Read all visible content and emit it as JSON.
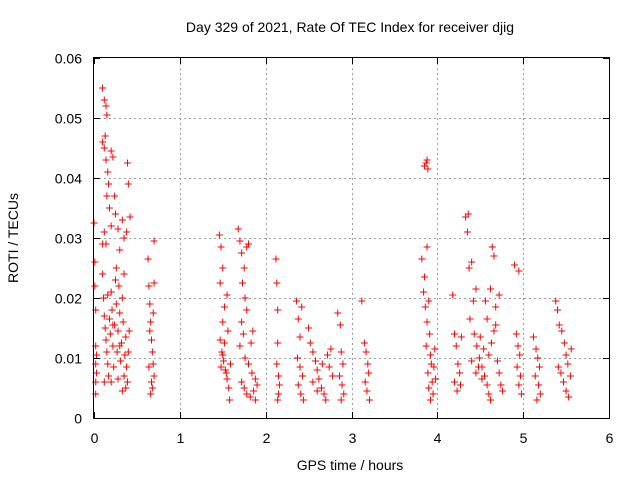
{
  "chart_data": {
    "type": "scatter",
    "title": "Day 329 of 2021, Rate Of TEC Index for receiver djig",
    "xlabel": "GPS time / hours",
    "ylabel": "ROTI / TECUs",
    "xlim": [
      0,
      6
    ],
    "ylim": [
      0,
      0.06
    ],
    "x_ticks": [
      0,
      1,
      2,
      3,
      4,
      5,
      6
    ],
    "x_tick_labels": [
      "0",
      "1",
      "2",
      "3",
      "4",
      "5",
      "6"
    ],
    "y_ticks": [
      0,
      0.01,
      0.02,
      0.03,
      0.04,
      0.05,
      0.06
    ],
    "y_tick_labels": [
      "0",
      "0.01",
      "0.02",
      "0.03",
      "0.04",
      "0.05",
      "0.06"
    ],
    "grid": true,
    "marker": "+",
    "color": "#ff0000",
    "series": [
      {
        "name": "ROTI",
        "points": [
          [
            0.0,
            0.0325
          ],
          [
            0.01,
            0.026
          ],
          [
            0.01,
            0.022
          ],
          [
            0.02,
            0.018
          ],
          [
            0.02,
            0.012
          ],
          [
            0.02,
            0.009
          ],
          [
            0.02,
            0.006
          ],
          [
            0.02,
            0.004
          ],
          [
            0.03,
            0.0105
          ],
          [
            0.03,
            0.0075
          ],
          [
            0.1,
            0.055
          ],
          [
            0.12,
            0.053
          ],
          [
            0.14,
            0.052
          ],
          [
            0.15,
            0.0505
          ],
          [
            0.13,
            0.047
          ],
          [
            0.12,
            0.045
          ],
          [
            0.1,
            0.046
          ],
          [
            0.14,
            0.043
          ],
          [
            0.16,
            0.041
          ],
          [
            0.17,
            0.039
          ],
          [
            0.2,
            0.0445
          ],
          [
            0.22,
            0.0435
          ],
          [
            0.15,
            0.037
          ],
          [
            0.1,
            0.029
          ],
          [
            0.12,
            0.031
          ],
          [
            0.14,
            0.029
          ],
          [
            0.18,
            0.035
          ],
          [
            0.2,
            0.032
          ],
          [
            0.24,
            0.037
          ],
          [
            0.25,
            0.034
          ],
          [
            0.28,
            0.0315
          ],
          [
            0.3,
            0.028
          ],
          [
            0.33,
            0.033
          ],
          [
            0.35,
            0.03
          ],
          [
            0.38,
            0.031
          ],
          [
            0.39,
            0.0425
          ],
          [
            0.4,
            0.039
          ],
          [
            0.42,
            0.0335
          ],
          [
            0.1,
            0.024
          ],
          [
            0.11,
            0.02
          ],
          [
            0.12,
            0.017
          ],
          [
            0.13,
            0.015
          ],
          [
            0.14,
            0.013
          ],
          [
            0.15,
            0.011
          ],
          [
            0.16,
            0.009
          ],
          [
            0.17,
            0.007
          ],
          [
            0.18,
            0.0165
          ],
          [
            0.19,
            0.014
          ],
          [
            0.2,
            0.021
          ],
          [
            0.21,
            0.018
          ],
          [
            0.22,
            0.012
          ],
          [
            0.23,
            0.0085
          ],
          [
            0.24,
            0.0155
          ],
          [
            0.25,
            0.023
          ],
          [
            0.26,
            0.019
          ],
          [
            0.27,
            0.011
          ],
          [
            0.28,
            0.0145
          ],
          [
            0.29,
            0.022
          ],
          [
            0.3,
            0.0175
          ],
          [
            0.31,
            0.0095
          ],
          [
            0.32,
            0.0125
          ],
          [
            0.33,
            0.02
          ],
          [
            0.34,
            0.016
          ],
          [
            0.35,
            0.007
          ],
          [
            0.36,
            0.0105
          ],
          [
            0.37,
            0.0135
          ],
          [
            0.38,
            0.0085
          ],
          [
            0.39,
            0.006
          ],
          [
            0.4,
            0.011
          ],
          [
            0.41,
            0.0145
          ],
          [
            0.12,
            0.006
          ],
          [
            0.2,
            0.006
          ],
          [
            0.28,
            0.0065
          ],
          [
            0.33,
            0.0045
          ],
          [
            0.37,
            0.005
          ],
          [
            0.26,
            0.025
          ],
          [
            0.16,
            0.0205
          ],
          [
            0.22,
            0.0155
          ],
          [
            0.3,
            0.012
          ],
          [
            0.35,
            0.024
          ],
          [
            0.63,
            0.0265
          ],
          [
            0.64,
            0.022
          ],
          [
            0.65,
            0.019
          ],
          [
            0.66,
            0.016
          ],
          [
            0.67,
            0.013
          ],
          [
            0.68,
            0.011
          ],
          [
            0.69,
            0.009
          ],
          [
            0.7,
            0.007
          ],
          [
            0.68,
            0.005
          ],
          [
            0.66,
            0.004
          ],
          [
            0.7,
            0.0295
          ],
          [
            0.7,
            0.0225
          ],
          [
            0.65,
            0.0145
          ],
          [
            0.69,
            0.0175
          ],
          [
            0.64,
            0.0085
          ],
          [
            0.67,
            0.006
          ],
          [
            1.46,
            0.0305
          ],
          [
            1.48,
            0.0285
          ],
          [
            1.5,
            0.025
          ],
          [
            1.47,
            0.0225
          ],
          [
            1.52,
            0.0185
          ],
          [
            1.55,
            0.0205
          ],
          [
            1.5,
            0.016
          ],
          [
            1.47,
            0.013
          ],
          [
            1.49,
            0.011
          ],
          [
            1.51,
            0.0095
          ],
          [
            1.53,
            0.008
          ],
          [
            1.55,
            0.0065
          ],
          [
            1.57,
            0.005
          ],
          [
            1.58,
            0.003
          ],
          [
            1.48,
            0.0085
          ],
          [
            1.5,
            0.0105
          ],
          [
            1.52,
            0.0125
          ],
          [
            1.56,
            0.0145
          ],
          [
            1.59,
            0.009
          ],
          [
            1.54,
            0.0075
          ],
          [
            1.68,
            0.0315
          ],
          [
            1.7,
            0.0295
          ],
          [
            1.72,
            0.0275
          ],
          [
            1.75,
            0.025
          ],
          [
            1.78,
            0.0285
          ],
          [
            1.8,
            0.029
          ],
          [
            1.73,
            0.0225
          ],
          [
            1.76,
            0.02
          ],
          [
            1.78,
            0.018
          ],
          [
            1.72,
            0.016
          ],
          [
            1.74,
            0.014
          ],
          [
            1.7,
            0.012
          ],
          [
            1.76,
            0.01
          ],
          [
            1.8,
            0.009
          ],
          [
            1.84,
            0.0075
          ],
          [
            1.85,
            0.0145
          ],
          [
            1.83,
            0.0125
          ],
          [
            1.88,
            0.0065
          ],
          [
            1.9,
            0.0055
          ],
          [
            1.72,
            0.006
          ],
          [
            1.75,
            0.005
          ],
          [
            1.78,
            0.004
          ],
          [
            1.82,
            0.0035
          ],
          [
            1.86,
            0.0045
          ],
          [
            1.88,
            0.003
          ],
          [
            2.12,
            0.0265
          ],
          [
            2.13,
            0.0225
          ],
          [
            2.14,
            0.018
          ],
          [
            2.14,
            0.0125
          ],
          [
            2.13,
            0.009
          ],
          [
            2.15,
            0.007
          ],
          [
            2.16,
            0.0055
          ],
          [
            2.15,
            0.004
          ],
          [
            2.14,
            0.003
          ],
          [
            2.36,
            0.0195
          ],
          [
            2.38,
            0.0165
          ],
          [
            2.4,
            0.0135
          ],
          [
            2.42,
            0.0185
          ],
          [
            2.37,
            0.01
          ],
          [
            2.4,
            0.0085
          ],
          [
            2.43,
            0.007
          ],
          [
            2.38,
            0.0055
          ],
          [
            2.41,
            0.004
          ],
          [
            2.44,
            0.003
          ],
          [
            2.5,
            0.015
          ],
          [
            2.52,
            0.0125
          ],
          [
            2.55,
            0.011
          ],
          [
            2.58,
            0.0095
          ],
          [
            2.6,
            0.008
          ],
          [
            2.62,
            0.0065
          ],
          [
            2.65,
            0.005
          ],
          [
            2.68,
            0.004
          ],
          [
            2.7,
            0.003
          ],
          [
            2.72,
            0.0105
          ],
          [
            2.74,
            0.0085
          ],
          [
            2.76,
            0.0115
          ],
          [
            2.78,
            0.007
          ],
          [
            2.55,
            0.006
          ],
          [
            2.6,
            0.0045
          ],
          [
            2.66,
            0.009
          ],
          [
            2.84,
            0.0175
          ],
          [
            2.87,
            0.0155
          ],
          [
            2.88,
            0.011
          ],
          [
            2.9,
            0.009
          ],
          [
            2.86,
            0.007
          ],
          [
            2.89,
            0.0055
          ],
          [
            2.91,
            0.004
          ],
          [
            2.88,
            0.003
          ],
          [
            3.12,
            0.0195
          ],
          [
            3.15,
            0.0125
          ],
          [
            3.17,
            0.011
          ],
          [
            3.19,
            0.009
          ],
          [
            3.2,
            0.0075
          ],
          [
            3.16,
            0.006
          ],
          [
            3.18,
            0.0045
          ],
          [
            3.21,
            0.003
          ],
          [
            3.85,
            0.042
          ],
          [
            3.87,
            0.0425
          ],
          [
            3.88,
            0.043
          ],
          [
            3.89,
            0.0415
          ],
          [
            3.82,
            0.0265
          ],
          [
            3.88,
            0.0285
          ],
          [
            3.85,
            0.0235
          ],
          [
            3.84,
            0.021
          ],
          [
            3.86,
            0.0185
          ],
          [
            3.9,
            0.0195
          ],
          [
            3.88,
            0.016
          ],
          [
            3.91,
            0.014
          ],
          [
            3.87,
            0.012
          ],
          [
            3.92,
            0.0105
          ],
          [
            3.93,
            0.009
          ],
          [
            3.89,
            0.0075
          ],
          [
            3.94,
            0.006
          ],
          [
            3.9,
            0.005
          ],
          [
            3.95,
            0.004
          ],
          [
            3.92,
            0.003
          ],
          [
            3.97,
            0.0115
          ],
          [
            3.96,
            0.0085
          ],
          [
            3.98,
            0.0065
          ],
          [
            4.18,
            0.0205
          ],
          [
            4.2,
            0.014
          ],
          [
            4.22,
            0.012
          ],
          [
            4.24,
            0.009
          ],
          [
            4.26,
            0.0075
          ],
          [
            4.2,
            0.006
          ],
          [
            4.23,
            0.0045
          ],
          [
            4.28,
            0.0135
          ],
          [
            4.27,
            0.0055
          ],
          [
            4.33,
            0.0335
          ],
          [
            4.35,
            0.031
          ],
          [
            4.36,
            0.034
          ],
          [
            4.37,
            0.025
          ],
          [
            4.4,
            0.026
          ],
          [
            4.42,
            0.0195
          ],
          [
            4.45,
            0.0215
          ],
          [
            4.38,
            0.0165
          ],
          [
            4.43,
            0.014
          ],
          [
            4.46,
            0.012
          ],
          [
            4.49,
            0.01
          ],
          [
            4.52,
            0.0085
          ],
          [
            4.55,
            0.007
          ],
          [
            4.58,
            0.0055
          ],
          [
            4.6,
            0.004
          ],
          [
            4.62,
            0.003
          ],
          [
            4.4,
            0.0095
          ],
          [
            4.45,
            0.0075
          ],
          [
            4.5,
            0.0135
          ],
          [
            4.54,
            0.0115
          ],
          [
            4.6,
            0.0105
          ],
          [
            4.63,
            0.0125
          ],
          [
            4.66,
            0.0145
          ],
          [
            4.68,
            0.0155
          ],
          [
            4.7,
            0.0095
          ],
          [
            4.72,
            0.0075
          ],
          [
            4.74,
            0.0055
          ],
          [
            4.76,
            0.0045
          ],
          [
            4.64,
            0.0285
          ],
          [
            4.66,
            0.027
          ],
          [
            4.62,
            0.0215
          ],
          [
            4.68,
            0.0185
          ],
          [
            4.72,
            0.0205
          ],
          [
            4.56,
            0.0195
          ],
          [
            4.58,
            0.0165
          ],
          [
            4.48,
            0.0085
          ],
          [
            4.52,
            0.0065
          ],
          [
            4.9,
            0.0255
          ],
          [
            4.95,
            0.0245
          ],
          [
            4.92,
            0.014
          ],
          [
            4.94,
            0.012
          ],
          [
            4.96,
            0.0105
          ],
          [
            4.93,
            0.0085
          ],
          [
            4.97,
            0.007
          ],
          [
            4.95,
            0.0055
          ],
          [
            4.98,
            0.004
          ],
          [
            5.12,
            0.0135
          ],
          [
            5.15,
            0.0115
          ],
          [
            5.17,
            0.01
          ],
          [
            5.19,
            0.0085
          ],
          [
            5.14,
            0.007
          ],
          [
            5.18,
            0.0055
          ],
          [
            5.2,
            0.004
          ],
          [
            5.16,
            0.003
          ],
          [
            5.38,
            0.0195
          ],
          [
            5.4,
            0.018
          ],
          [
            5.42,
            0.0155
          ],
          [
            5.45,
            0.0145
          ],
          [
            5.48,
            0.0125
          ],
          [
            5.5,
            0.0105
          ],
          [
            5.52,
            0.009
          ],
          [
            5.44,
            0.0075
          ],
          [
            5.47,
            0.006
          ],
          [
            5.5,
            0.0045
          ],
          [
            5.53,
            0.0035
          ],
          [
            5.41,
            0.0085
          ],
          [
            5.55,
            0.007
          ],
          [
            5.56,
            0.0115
          ]
        ]
      }
    ]
  }
}
